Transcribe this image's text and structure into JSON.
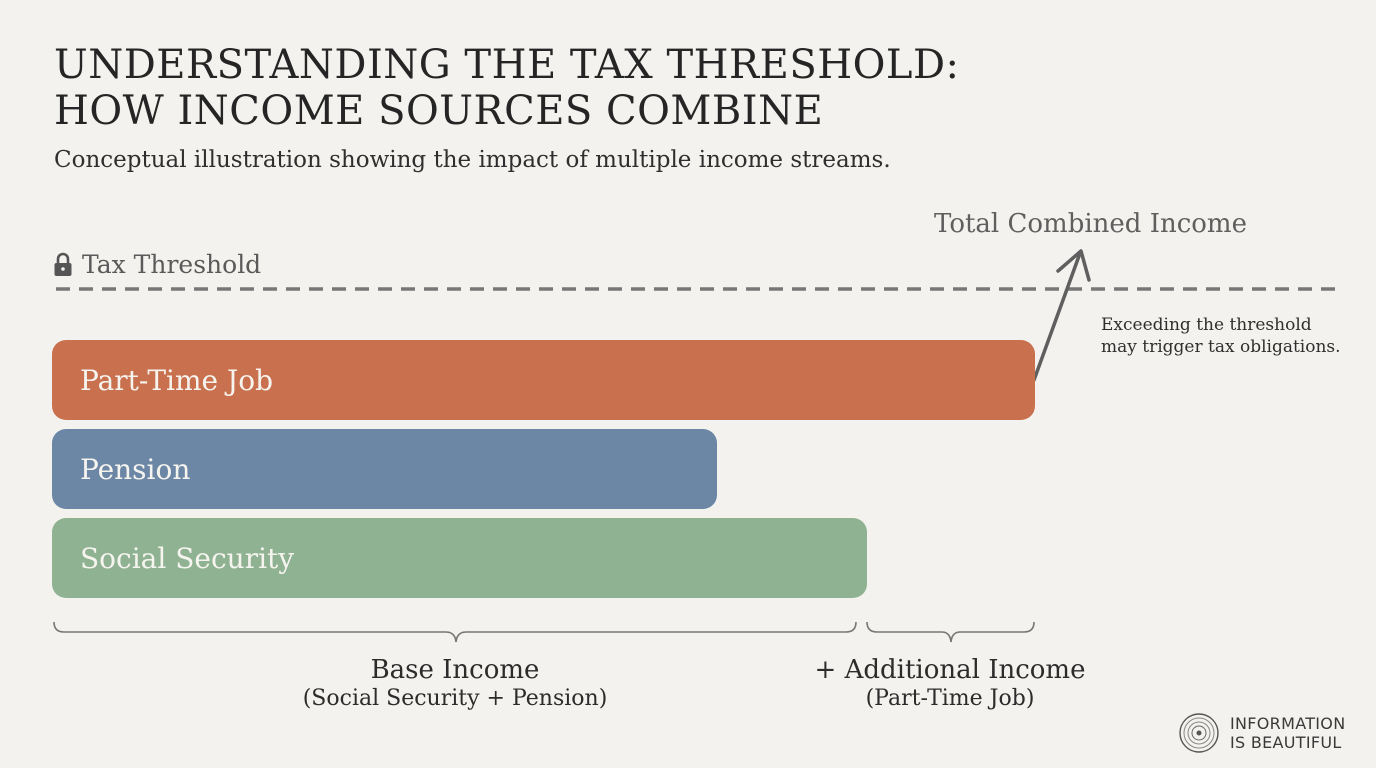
{
  "title": {
    "line1": "UNDERSTANDING THE TAX THRESHOLD:",
    "line2": "HOW INCOME SOURCES COMBINE"
  },
  "subtitle": "Conceptual illustration showing the impact of multiple income streams.",
  "threshold": {
    "label": "Tax Threshold",
    "icon": "lock-icon"
  },
  "total": {
    "label": "Total Combined Income",
    "icon": "arrow-up-right-icon"
  },
  "note": {
    "line1": "Exceeding the threshold",
    "line2": "may trigger tax obligations."
  },
  "bars": [
    {
      "label": "Part-Time Job",
      "color": "#c9714f"
    },
    {
      "label": "Pension",
      "color": "#6c87a6"
    },
    {
      "label": "Social Security",
      "color": "#8fb292"
    }
  ],
  "braces": {
    "base": {
      "label": "Base Income",
      "sub": "(Social Security + Pension)"
    },
    "additional": {
      "label": "+ Additional Income",
      "sub": "(Part-Time Job)"
    }
  },
  "brand": {
    "line1": "INFORMATION",
    "line2": "IS BEAUTIFUL",
    "icon": "record-logo-icon"
  },
  "colors": {
    "background": "#f3f2ee",
    "threshold_line": "#777777",
    "arrow": "#5f5f5f"
  }
}
